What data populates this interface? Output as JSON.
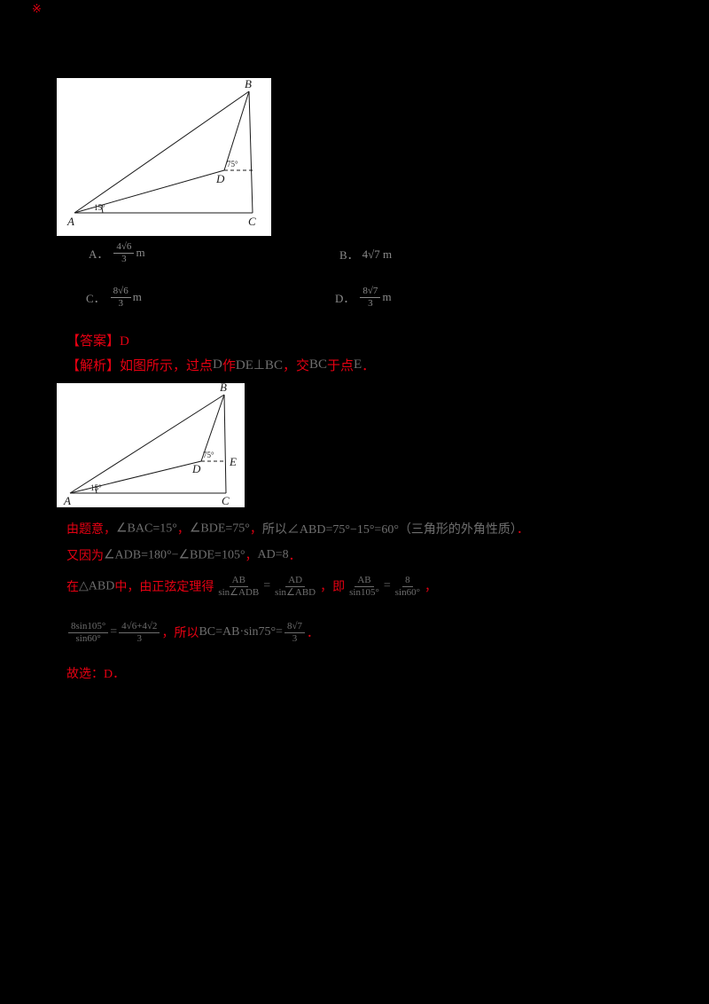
{
  "page": {
    "bg": "#000000",
    "red": "#e60012",
    "ink": "#6e6e6e",
    "opt": "#8a8a8a",
    "figure_bg": "#ffffff",
    "figure_ink": "#1a1a1a"
  },
  "marks": [
    "※"
  ],
  "figure1": {
    "labels": {
      "A": "A",
      "B": "B",
      "C": "C",
      "D": "D",
      "angle_a": "15°",
      "angle_d": "75°"
    }
  },
  "figure2": {
    "labels": {
      "A": "A",
      "B": "B",
      "C": "C",
      "D": "D",
      "E": "E",
      "angle_a": "15°",
      "angle_d": "75°"
    }
  },
  "options": [
    {
      "label": "A．",
      "segments": [
        {
          "frac": [
            "4√6",
            "3"
          ],
          "c": "opt"
        },
        {
          "t": " m",
          "c": "opt"
        }
      ]
    },
    {
      "label": "B．",
      "segments": [
        {
          "t": "4√7 m",
          "c": "opt"
        }
      ]
    },
    {
      "label": "C．",
      "segments": [
        {
          "frac": [
            "8√6",
            "3"
          ],
          "c": "opt"
        },
        {
          "t": " m",
          "c": "opt"
        }
      ]
    },
    {
      "label": "D．",
      "segments": [
        {
          "frac": [
            "8√7",
            "3"
          ],
          "c": "opt"
        },
        {
          "t": " m",
          "c": "opt"
        }
      ]
    }
  ],
  "answer_line": [
    {
      "t": "【答案】D",
      "c": "red"
    }
  ],
  "analysis_line": [
    {
      "t": "【解析】如图所示，过点",
      "c": "red"
    },
    {
      "t": "D",
      "c": "ink"
    },
    {
      "t": "作",
      "c": "red"
    },
    {
      "t": "DE⊥BC",
      "c": "ink"
    },
    {
      "t": "，交",
      "c": "red"
    },
    {
      "t": "BC",
      "c": "ink"
    },
    {
      "t": "于点",
      "c": "red"
    },
    {
      "t": "E",
      "c": "ink"
    },
    {
      "t": "．",
      "c": "red"
    }
  ],
  "body_lines": [
    [
      {
        "t": "由题意，",
        "c": "red"
      },
      {
        "t": "∠BAC=15°",
        "c": "ink"
      },
      {
        "t": "，",
        "c": "red"
      },
      {
        "t": "∠BDE=75°",
        "c": "ink"
      },
      {
        "t": "，",
        "c": "red"
      },
      {
        "t": "所以∠ABD=75°−15°=60°",
        "c": "ink"
      },
      {
        "t": "（三角形的外角性质）",
        "c": "ink"
      },
      {
        "t": "．",
        "c": "red"
      }
    ],
    [
      {
        "t": "又因为",
        "c": "red"
      },
      {
        "t": "∠ADB=180°−∠BDE=105°",
        "c": "ink"
      },
      {
        "t": "，",
        "c": "red"
      },
      {
        "t": "AD=8",
        "c": "ink"
      },
      {
        "t": "．",
        "c": "red"
      }
    ],
    [
      {
        "t": "在",
        "c": "red"
      },
      {
        "t": "△ABD",
        "c": "ink"
      },
      {
        "t": "中，由正弦定理得",
        "c": "red"
      },
      {
        "frac": [
          "AB",
          "sin∠ADB"
        ],
        "c": "ink"
      },
      {
        "t": "=",
        "c": "ink"
      },
      {
        "frac": [
          "AD",
          "sin∠ABD"
        ],
        "c": "ink"
      },
      {
        "t": "，即",
        "c": "red"
      },
      {
        "frac": [
          "AB",
          "sin105°"
        ],
        "c": "ink"
      },
      {
        "t": "=",
        "c": "ink"
      },
      {
        "frac": [
          "8",
          "sin60°"
        ],
        "c": "ink"
      },
      {
        "t": "，",
        "c": "red"
      }
    ],
    [
      {
        "frac": [
          "8sin105°",
          "sin60°"
        ],
        "c": "ink"
      },
      {
        "t": "=",
        "c": "ink"
      },
      {
        "frac": [
          "4√6+4√2",
          "3"
        ],
        "c": "ink"
      },
      {
        "t": "，所以",
        "c": "red"
      },
      {
        "t": "BC=AB·sin75°=",
        "c": "ink"
      },
      {
        "frac": [
          "8√7",
          "3"
        ],
        "c": "ink"
      },
      {
        "t": "．",
        "c": "red"
      }
    ],
    [
      {
        "t": "故选：D．",
        "c": "red"
      }
    ]
  ]
}
